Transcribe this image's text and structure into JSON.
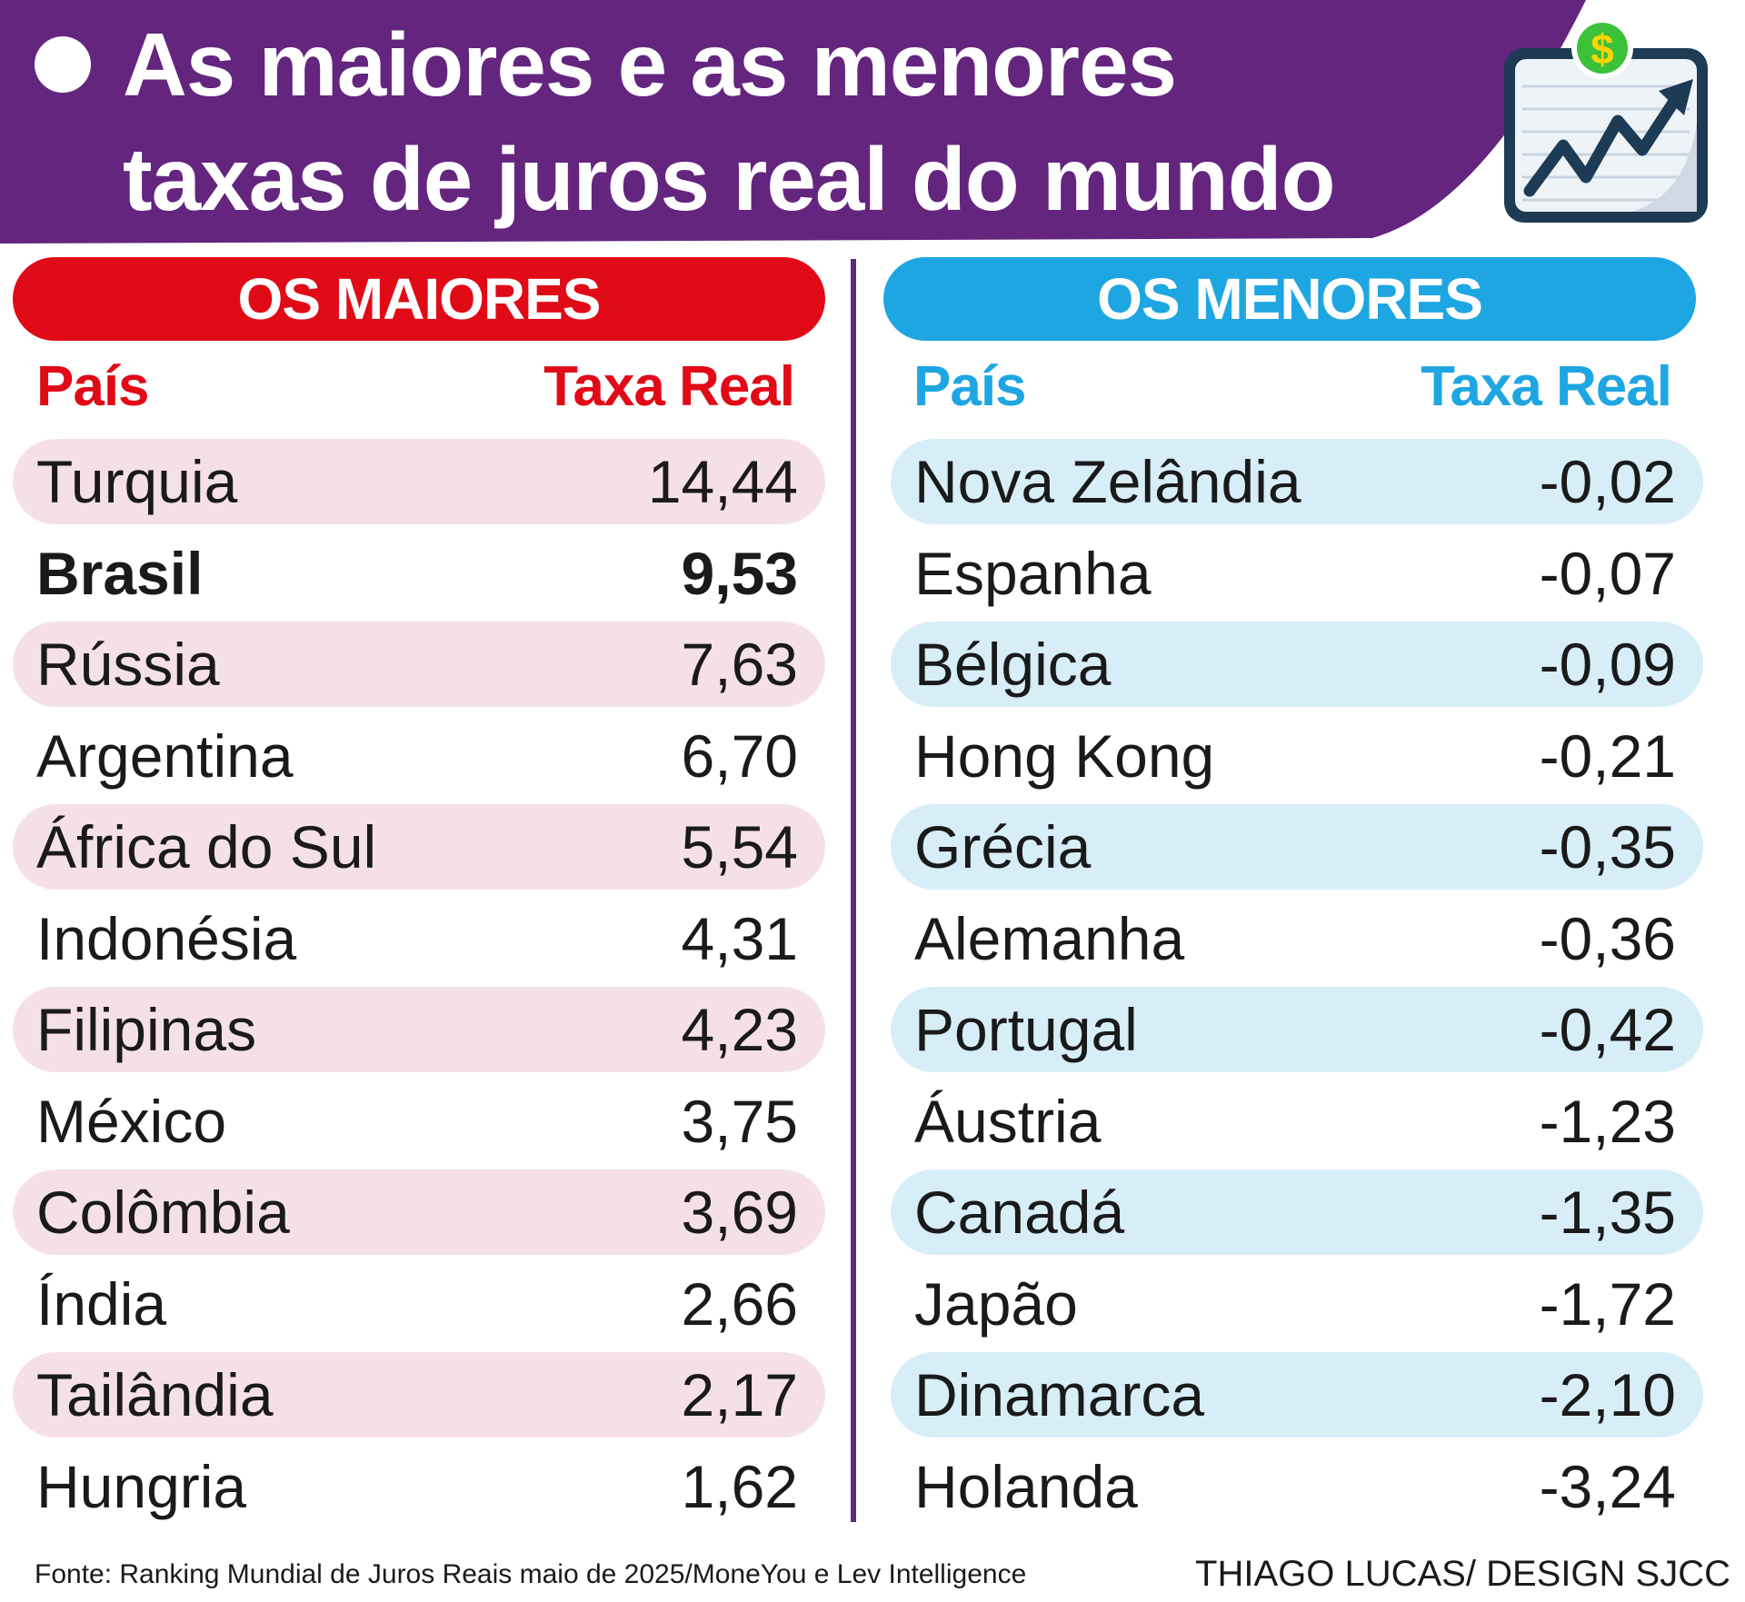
{
  "title": {
    "line1": "As maiores e as menores",
    "line2": "taxas de juros real do mundo"
  },
  "colors": {
    "banner": "#64257f",
    "maiores": "#e10a17",
    "menores": "#1ea6e2",
    "maiores_row": "#f5e1e5",
    "menores_row": "#d7eef8"
  },
  "icon": "rising-chart-dollar-icon",
  "chart_data": {
    "type": "table",
    "tables": [
      {
        "heading": "OS MAIORES",
        "columns": [
          "País",
          "Taxa Real"
        ],
        "rows": [
          [
            "Turquia",
            "14,44"
          ],
          [
            "Brasil",
            "9,53"
          ],
          [
            "Rússia",
            "7,63"
          ],
          [
            "Argentina",
            "6,70"
          ],
          [
            "África do Sul",
            "5,54"
          ],
          [
            "Indonésia",
            "4,31"
          ],
          [
            "Filipinas",
            "4,23"
          ],
          [
            "México",
            "3,75"
          ],
          [
            "Colômbia",
            "3,69"
          ],
          [
            "Índia",
            "2,66"
          ],
          [
            "Tailândia",
            "2,17"
          ],
          [
            "Hungria",
            "1,62"
          ]
        ],
        "highlighted_row": "Brasil"
      },
      {
        "heading": "OS MENORES",
        "columns": [
          "País",
          "Taxa Real"
        ],
        "rows": [
          [
            "Nova Zelândia",
            "-0,02"
          ],
          [
            "Espanha",
            "-0,07"
          ],
          [
            "Bélgica",
            "-0,09"
          ],
          [
            "Hong Kong",
            "-0,21"
          ],
          [
            "Grécia",
            "-0,35"
          ],
          [
            "Alemanha",
            "-0,36"
          ],
          [
            "Portugal",
            "-0,42"
          ],
          [
            "Áustria",
            "-1,23"
          ],
          [
            "Canadá",
            "-1,35"
          ],
          [
            "Japão",
            "-1,72"
          ],
          [
            "Dinamarca",
            "-2,10"
          ],
          [
            "Holanda",
            "-3,24"
          ]
        ]
      }
    ]
  },
  "footer": {
    "source": "Fonte: Ranking Mundial de Juros Reais maio de 2025/MoneYou e Lev Intelligence",
    "credit": "THIAGO LUCAS/ DESIGN SJCC"
  }
}
